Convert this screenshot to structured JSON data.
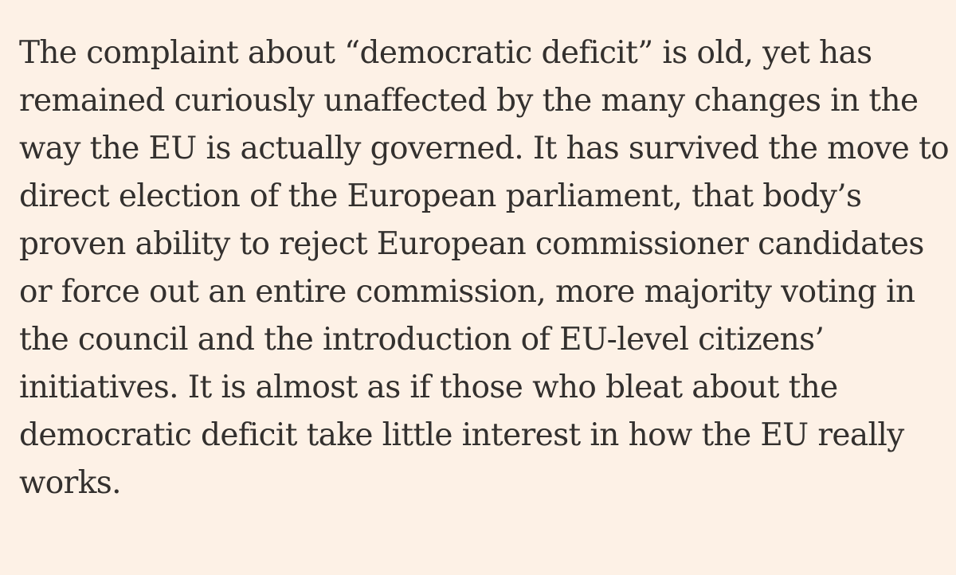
{
  "article": {
    "paragraph_lines": [
      "The complaint about “democratic deficit” is old, yet has",
      "remained curiously unaffected by the many changes in the",
      "way the EU is actually governed. It has survived the move to",
      "direct election of the European parliament, that body’s",
      "proven ability to reject European commissioner candidates",
      "or force out an entire commission, more majority voting in",
      "the council and the introduction of EU-level citizens’",
      "initiatives. It is almost as if those who bleat about the",
      "democratic deficit take little interest in how the EU really",
      "works."
    ]
  }
}
